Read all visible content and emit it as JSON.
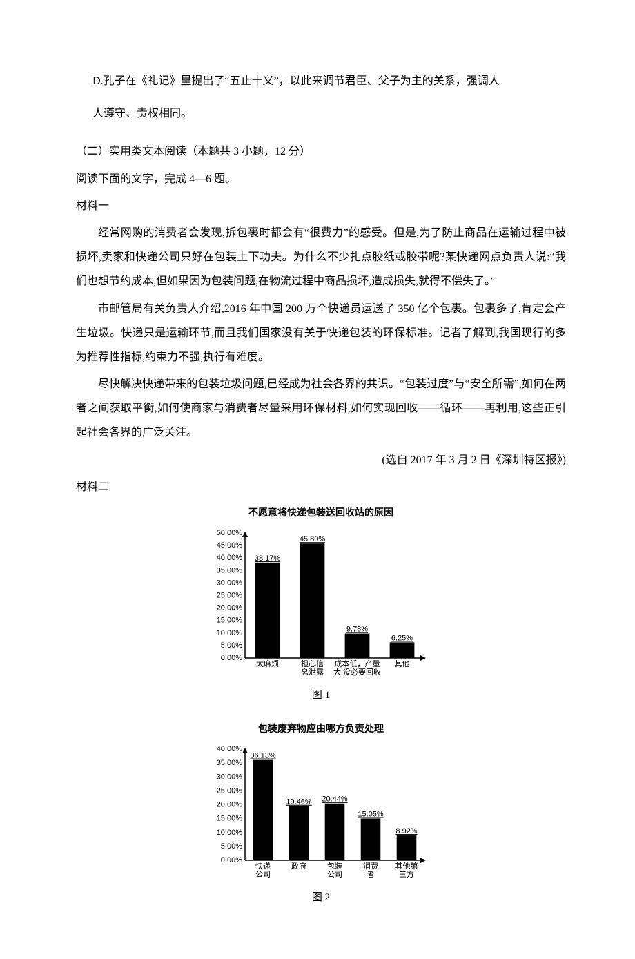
{
  "optionD": {
    "line1": "D.孔子在《礼记》里提出了“五止十义”，以此来调节君臣、父子为主的关系，强调人",
    "line2": "人遵守、责权相同。"
  },
  "section2": {
    "heading": "（二）实用类文本阅读（本题共 3 小题，12 分）",
    "instr": "阅读下面的文字，完成 4—6 题。",
    "mat1_label": "材料一",
    "mat1_p1": "经常网购的消费者会发现,拆包裹时都会有“很费力”的感受。但是,为了防止商品在运输过程中被损坏,卖家和快递公司只好在包装上下功夫。为什么不少扎点胶纸或胶带呢?某快递网点负责人说:“我们也想节约成本,但如果因为包装问题,在物流过程中商品损坏,造成损失,就得不偿失了。”",
    "mat1_p2": "市邮管局有关负责人介绍,2016 年中国 200 万个快递员运送了 350 亿个包裹。包裹多了,肯定会产生垃圾。快递只是运输环节,而且我们国家没有关于快递包装的环保标准。记者了解到,我国现行的多为推荐性指标,约束力不强,执行有难度。",
    "mat1_p3": "尽快解决快递带来的包装垃圾问题,已经成为社会各界的共识。“包装过度”与“安全所需”,如何在两者之间获取平衡,如何使商家与消费者尽量采用环保材料,如何实现回收——循环——再利用,这些正引起社会各界的广泛关注。",
    "mat1_source": "(选自 2017 年 3 月 2 日《深圳特区报》)",
    "mat2_label": "材料二"
  },
  "chart1": {
    "title": "不愿意将快递包装送回收站的原因",
    "caption": "图 1",
    "bar_color": "#000000",
    "axis_color": "#000000",
    "ymin": 0.0,
    "ymax": 50.0,
    "ystep": 5.0,
    "yticks_fmt": [
      "0.00%",
      "5.00%",
      "10.00%",
      "15.00%",
      "20.00%",
      "25.00%",
      "30.00%",
      "35.00%",
      "40.00%",
      "45.00%",
      "50.00%"
    ],
    "categories": [
      {
        "lines": [
          "太麻烦"
        ]
      },
      {
        "lines": [
          "担心信",
          "息泄露"
        ]
      },
      {
        "lines": [
          "成本低，产量",
          "大,没必要回收"
        ]
      },
      {
        "lines": [
          "其他"
        ]
      }
    ],
    "values": [
      38.17,
      45.8,
      9.78,
      6.25
    ],
    "value_labels": [
      "38.17%",
      "45.80%",
      "9.78%",
      "6.25%"
    ]
  },
  "chart2": {
    "title": "包装废弃物应由哪方负责处理",
    "caption": "图 2",
    "bar_color": "#000000",
    "axis_color": "#000000",
    "ymin": 0.0,
    "ymax": 40.0,
    "ystep": 5.0,
    "yticks_fmt": [
      "0.00%",
      "5.00%",
      "10.00%",
      "15.00%",
      "20.00%",
      "25.00%",
      "30.00%",
      "35.00%",
      "40.00%"
    ],
    "categories": [
      {
        "lines": [
          "快递",
          "公司"
        ]
      },
      {
        "lines": [
          "政府"
        ]
      },
      {
        "lines": [
          "包装",
          "公司"
        ]
      },
      {
        "lines": [
          "消费",
          "者"
        ]
      },
      {
        "lines": [
          "其他第",
          "三方"
        ]
      }
    ],
    "values": [
      36.13,
      19.46,
      20.44,
      15.05,
      8.92
    ],
    "value_labels": [
      "36.13%",
      "19.46%",
      "20.44%",
      "15.05%",
      "8.92%"
    ]
  }
}
